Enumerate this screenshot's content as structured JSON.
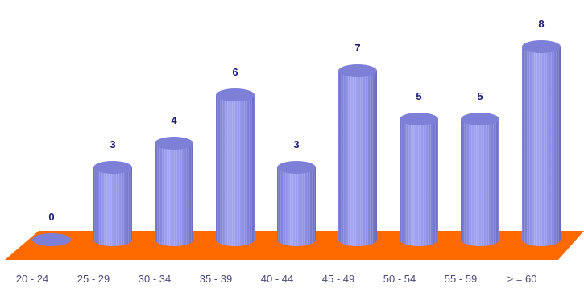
{
  "chart_data": {
    "type": "bar",
    "style": "3d-cylinder",
    "categories": [
      "20 - 24",
      "25 - 29",
      "30 - 34",
      "35 - 39",
      "40 - 44",
      "45 - 49",
      "50 - 54",
      "55 - 59",
      "> = 60"
    ],
    "values": [
      0,
      3,
      4,
      6,
      3,
      7,
      5,
      5,
      8
    ],
    "data_labels": [
      "0",
      "3",
      "4",
      "6",
      "3",
      "7",
      "5",
      "5",
      "8"
    ],
    "ylim": [
      0,
      8
    ],
    "title": "",
    "xlabel": "",
    "ylabel": "",
    "grid": false,
    "legend": "none"
  },
  "colors": {
    "floor": "#ff6a00",
    "bar_side": "#8f8fe8",
    "bar_top": "#7e80d8",
    "value_label": "#1a1a7a",
    "category_label": "#4a4a7a"
  }
}
